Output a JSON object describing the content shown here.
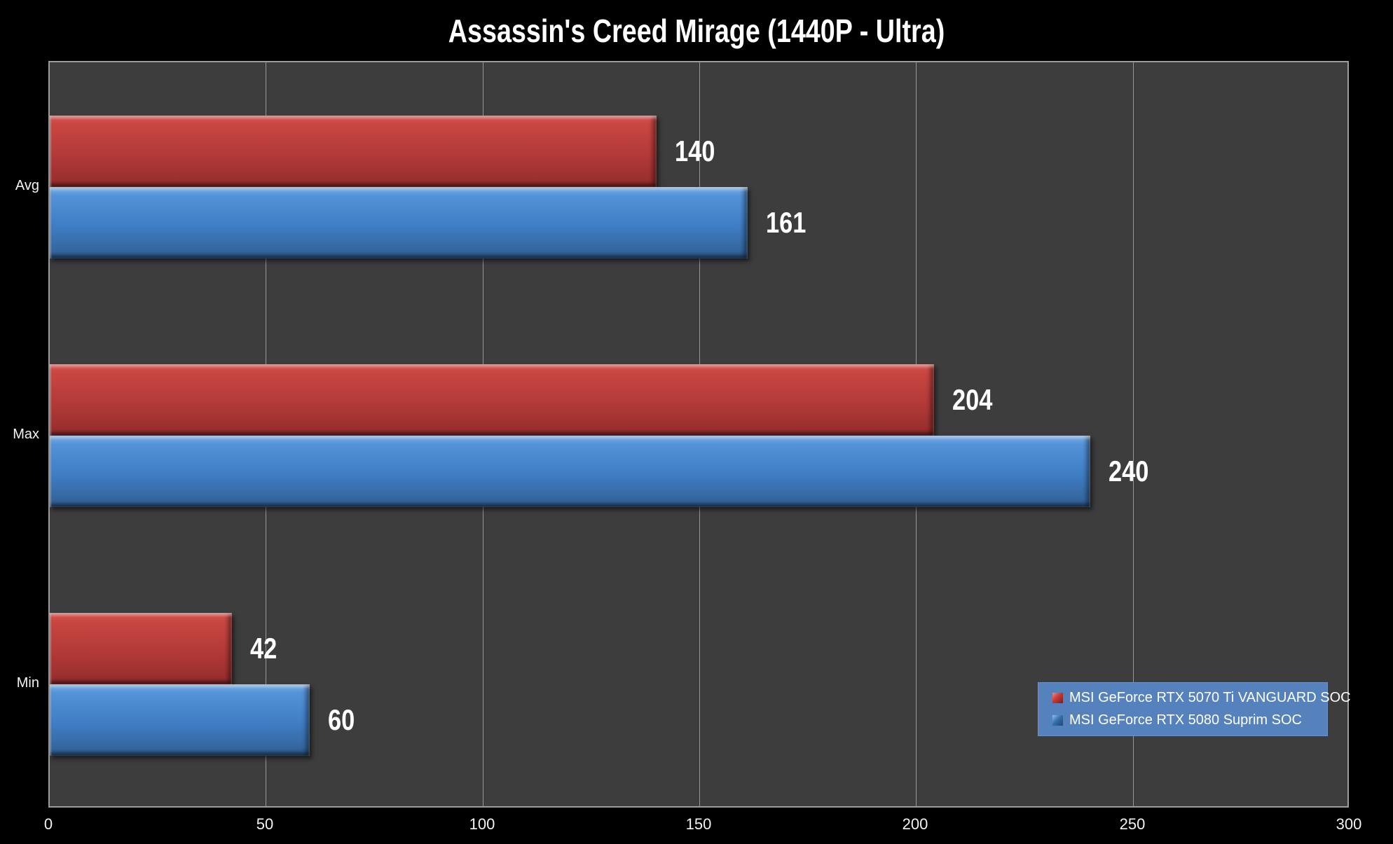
{
  "title": "Assassin's Creed Mirage (1440P - Ultra)",
  "colors": {
    "page_bg": "#000000",
    "plot_bg": "#3d3d3d",
    "gridline": "#989898",
    "plot_border": "#9c9c9c",
    "text": "#ffffff",
    "legend_bg": "#5581bd",
    "series1_red": "#b23a38",
    "series2_blue": "#3f7dc4"
  },
  "chart_data": {
    "type": "bar",
    "orientation": "horizontal",
    "title": "Assassin's Creed Mirage (1440P - Ultra)",
    "categories": [
      "Avg",
      "Max",
      "Min"
    ],
    "series": [
      {
        "name": "MSI GeForce RTX 5070 Ti VANGUARD SOC",
        "color": "#b23a38",
        "values": [
          140,
          204,
          42
        ]
      },
      {
        "name": "MSI GeForce RTX 5080 Suprim SOC",
        "color": "#3f7dc4",
        "values": [
          161,
          240,
          60
        ]
      }
    ],
    "xlim": [
      0,
      300
    ],
    "x_ticks": [
      0,
      50,
      100,
      150,
      200,
      250,
      300
    ],
    "grid": true,
    "data_labels": true,
    "legend_position": "bottom-right"
  }
}
